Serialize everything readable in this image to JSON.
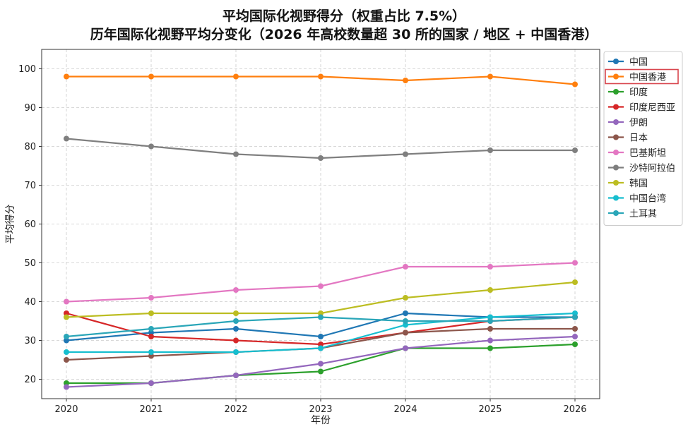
{
  "chart_data": {
    "type": "line",
    "title": "平均国际化视野得分（权重占比 7.5%）",
    "subtitle": "历年国际化视野平均分变化（2026 年高校数量超 30 所的国家 / 地区 + 中国香港）",
    "xlabel": "年份",
    "ylabel": "平均得分",
    "x": [
      "2020",
      "2021",
      "2022",
      "2023",
      "2024",
      "2025",
      "2026"
    ],
    "ylim": [
      15,
      105
    ],
    "yticks": [
      20,
      30,
      40,
      50,
      60,
      70,
      80,
      90,
      100
    ],
    "grid": true,
    "legend_position": "top-right",
    "highlighted_legend_entry": "中国香港",
    "series": [
      {
        "name": "中国",
        "color": "#1f77b4",
        "values": [
          30,
          32,
          33,
          31,
          37,
          36,
          36
        ]
      },
      {
        "name": "中国香港",
        "color": "#ff7f0e",
        "values": [
          98,
          98,
          98,
          98,
          97,
          98,
          96
        ]
      },
      {
        "name": "印度",
        "color": "#2ca02c",
        "values": [
          19,
          19,
          21,
          22,
          28,
          28,
          29
        ]
      },
      {
        "name": "印度尼西亚",
        "color": "#d62728",
        "values": [
          37,
          31,
          30,
          29,
          32,
          35,
          36
        ]
      },
      {
        "name": "伊朗",
        "color": "#9467bd",
        "values": [
          18,
          19,
          21,
          24,
          28,
          30,
          31
        ]
      },
      {
        "name": "日本",
        "color": "#8c564b",
        "values": [
          25,
          26,
          27,
          28,
          32,
          33,
          33
        ]
      },
      {
        "name": "巴基斯坦",
        "color": "#e377c2",
        "values": [
          40,
          41,
          43,
          44,
          49,
          49,
          50
        ]
      },
      {
        "name": "沙特阿拉伯",
        "color": "#7f7f7f",
        "values": [
          82,
          80,
          78,
          77,
          78,
          79,
          79
        ]
      },
      {
        "name": "韩国",
        "color": "#bcbd22",
        "values": [
          36,
          37,
          37,
          37,
          41,
          43,
          45
        ]
      },
      {
        "name": "中国台湾",
        "color": "#17becf",
        "values": [
          27,
          27,
          27,
          28,
          34,
          36,
          37
        ]
      },
      {
        "name": "土耳其",
        "color": "#2aa6b8",
        "values": [
          31,
          33,
          35,
          36,
          35,
          35,
          36
        ]
      }
    ]
  }
}
